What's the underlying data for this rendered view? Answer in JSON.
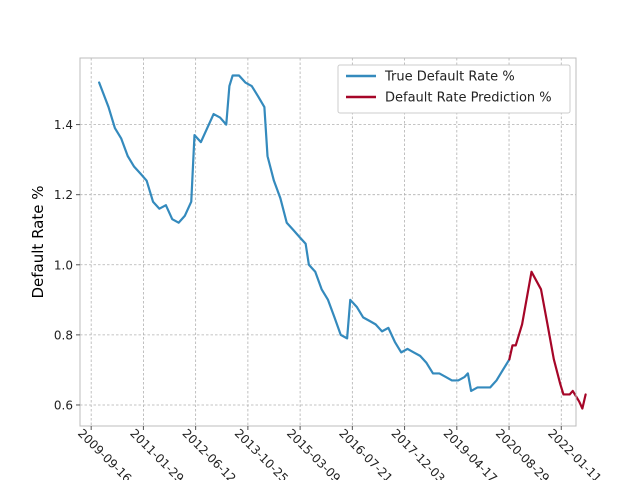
{
  "chart_data": {
    "type": "line",
    "title": "",
    "xlabel": "",
    "ylabel": "Default Rate %",
    "x_tick_labels": [
      "2009-09-16",
      "2011-01-29",
      "2012-06-12",
      "2013-10-25",
      "2015-03-09",
      "2016-07-21",
      "2017-12-03",
      "2019-04-17",
      "2020-08-29",
      "2022-01-11"
    ],
    "xlim": [
      "2009-06-01",
      "2022-06-01"
    ],
    "y_ticks": [
      "0.6",
      "0.8",
      "1.0",
      "1.2",
      "1.4"
    ],
    "ylim": [
      0.54,
      1.59
    ],
    "grid": true,
    "legend_position": "top-right",
    "series": [
      {
        "name": "True Default Rate %",
        "color": "#348ABD",
        "points": [
          [
            "2009-12-01",
            1.52
          ],
          [
            "2010-03-01",
            1.45
          ],
          [
            "2010-05-01",
            1.39
          ],
          [
            "2010-07-01",
            1.36
          ],
          [
            "2010-09-01",
            1.31
          ],
          [
            "2010-11-01",
            1.28
          ],
          [
            "2011-01-01",
            1.26
          ],
          [
            "2011-03-01",
            1.24
          ],
          [
            "2011-05-01",
            1.18
          ],
          [
            "2011-07-01",
            1.16
          ],
          [
            "2011-09-01",
            1.17
          ],
          [
            "2011-11-01",
            1.13
          ],
          [
            "2012-01-01",
            1.12
          ],
          [
            "2012-03-01",
            1.14
          ],
          [
            "2012-05-01",
            1.18
          ],
          [
            "2012-06-01",
            1.37
          ],
          [
            "2012-08-01",
            1.35
          ],
          [
            "2012-10-01",
            1.39
          ],
          [
            "2012-12-01",
            1.43
          ],
          [
            "2013-02-01",
            1.42
          ],
          [
            "2013-04-01",
            1.4
          ],
          [
            "2013-05-01",
            1.51
          ],
          [
            "2013-06-01",
            1.54
          ],
          [
            "2013-08-01",
            1.54
          ],
          [
            "2013-10-01",
            1.52
          ],
          [
            "2013-12-01",
            1.51
          ],
          [
            "2014-02-01",
            1.48
          ],
          [
            "2014-04-01",
            1.45
          ],
          [
            "2014-05-01",
            1.31
          ],
          [
            "2014-07-01",
            1.24
          ],
          [
            "2014-09-01",
            1.19
          ],
          [
            "2014-11-01",
            1.12
          ],
          [
            "2015-01-01",
            1.1
          ],
          [
            "2015-03-01",
            1.08
          ],
          [
            "2015-05-01",
            1.06
          ],
          [
            "2015-06-01",
            1.0
          ],
          [
            "2015-08-01",
            0.98
          ],
          [
            "2015-10-01",
            0.93
          ],
          [
            "2015-12-01",
            0.9
          ],
          [
            "2016-02-01",
            0.85
          ],
          [
            "2016-04-01",
            0.8
          ],
          [
            "2016-06-01",
            0.79
          ],
          [
            "2016-07-01",
            0.9
          ],
          [
            "2016-09-01",
            0.88
          ],
          [
            "2016-11-01",
            0.85
          ],
          [
            "2017-01-01",
            0.84
          ],
          [
            "2017-03-01",
            0.83
          ],
          [
            "2017-05-01",
            0.81
          ],
          [
            "2017-07-01",
            0.82
          ],
          [
            "2017-09-01",
            0.78
          ],
          [
            "2017-11-01",
            0.75
          ],
          [
            "2018-01-01",
            0.76
          ],
          [
            "2018-03-01",
            0.75
          ],
          [
            "2018-05-01",
            0.74
          ],
          [
            "2018-07-01",
            0.72
          ],
          [
            "2018-09-01",
            0.69
          ],
          [
            "2018-11-01",
            0.69
          ],
          [
            "2019-01-01",
            0.68
          ],
          [
            "2019-03-01",
            0.67
          ],
          [
            "2019-05-01",
            0.67
          ],
          [
            "2019-07-01",
            0.68
          ],
          [
            "2019-08-01",
            0.69
          ],
          [
            "2019-09-01",
            0.64
          ],
          [
            "2019-11-01",
            0.65
          ],
          [
            "2020-01-01",
            0.65
          ],
          [
            "2020-03-01",
            0.65
          ],
          [
            "2020-05-01",
            0.67
          ],
          [
            "2020-07-01",
            0.7
          ],
          [
            "2020-09-01",
            0.73
          ]
        ]
      },
      {
        "name": "Default Rate Prediction %",
        "color": "#A60628",
        "points": [
          [
            "2020-09-01",
            0.73
          ],
          [
            "2020-10-01",
            0.77
          ],
          [
            "2020-11-01",
            0.77
          ],
          [
            "2021-01-01",
            0.83
          ],
          [
            "2021-04-01",
            0.98
          ],
          [
            "2021-07-01",
            0.93
          ],
          [
            "2021-09-01",
            0.83
          ],
          [
            "2021-11-01",
            0.73
          ],
          [
            "2022-01-01",
            0.66
          ],
          [
            "2022-02-01",
            0.63
          ],
          [
            "2022-04-01",
            0.63
          ],
          [
            "2022-05-01",
            0.64
          ],
          [
            "2022-07-01",
            0.61
          ],
          [
            "2022-08-01",
            0.59
          ],
          [
            "2022-09-01",
            0.63
          ]
        ]
      }
    ]
  }
}
